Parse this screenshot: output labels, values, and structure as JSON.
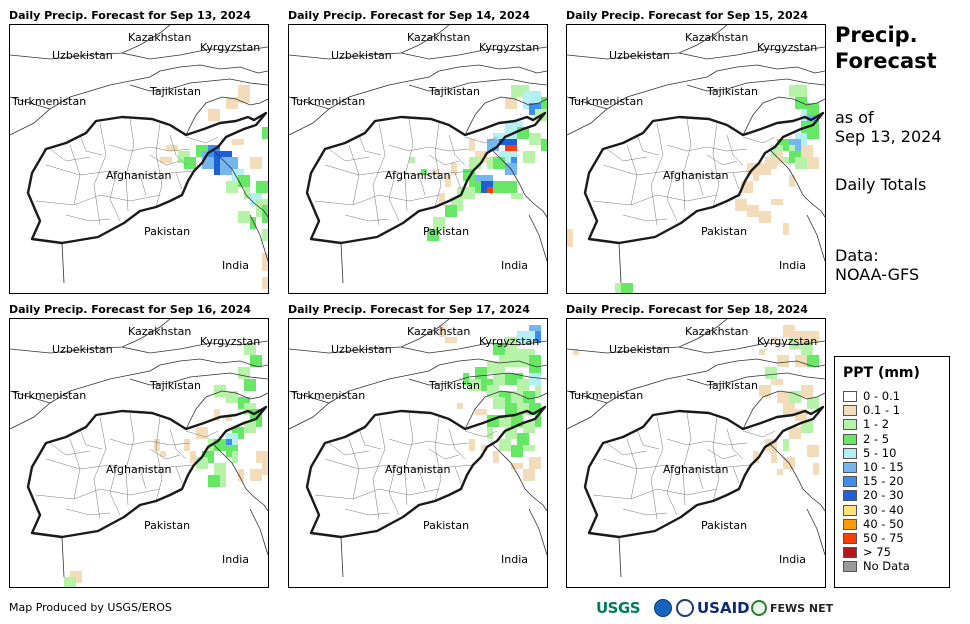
{
  "panels": [
    {
      "title": "Daily Precip. Forecast for Sep 13, 2024",
      "date": "Sep 13, 2024"
    },
    {
      "title": "Daily Precip. Forecast for Sep 14, 2024",
      "date": "Sep 14, 2024"
    },
    {
      "title": "Daily Precip. Forecast for Sep 15, 2024",
      "date": "Sep 15, 2024"
    },
    {
      "title": "Daily Precip. Forecast for Sep 16, 2024",
      "date": "Sep 16, 2024"
    },
    {
      "title": "Daily Precip. Forecast for Sep 17, 2024",
      "date": "Sep 17, 2024"
    },
    {
      "title": "Daily Precip. Forecast for Sep 18, 2024",
      "date": "Sep 18, 2024"
    }
  ],
  "countries": [
    "Kazakhstan",
    "Kyrgyzstan",
    "Uzbekistan",
    "Tajikistan",
    "Turkmenistan",
    "Afghanistan",
    "Pakistan",
    "India"
  ],
  "sidebar": {
    "title": "Precip. Forecast",
    "as_of_label": "as of",
    "as_of_date": "Sep 13, 2024",
    "totals": "Daily Totals",
    "data_label": "Data:",
    "data_source": "NOAA-GFS"
  },
  "legend": {
    "title": "PPT (mm)",
    "items": [
      {
        "label": "0 - 0.1",
        "color": "#ffffff"
      },
      {
        "label": "0.1 - 1",
        "color": "#f2dcb9"
      },
      {
        "label": "1 - 2",
        "color": "#b7f2a9"
      },
      {
        "label": "2 - 5",
        "color": "#66e866"
      },
      {
        "label": "5 - 10",
        "color": "#b3f0f5"
      },
      {
        "label": "10 - 15",
        "color": "#75b6ef"
      },
      {
        "label": "15 - 20",
        "color": "#3f8eef"
      },
      {
        "label": "20 - 30",
        "color": "#1c5fd9"
      },
      {
        "label": "30 - 40",
        "color": "#ffe27a"
      },
      {
        "label": "40 - 50",
        "color": "#ff9b00"
      },
      {
        "label": "50 - 75",
        "color": "#ff3d00"
      },
      {
        "label": "> 75",
        "color": "#b01818"
      },
      {
        "label": "No Data",
        "color": "#9a9a9a"
      }
    ]
  },
  "footer": {
    "credit": "Map Produced by USGS/EROS",
    "logos": {
      "usgs": "USGS",
      "usaid": "USAID",
      "fews": "FEWS NET"
    }
  }
}
